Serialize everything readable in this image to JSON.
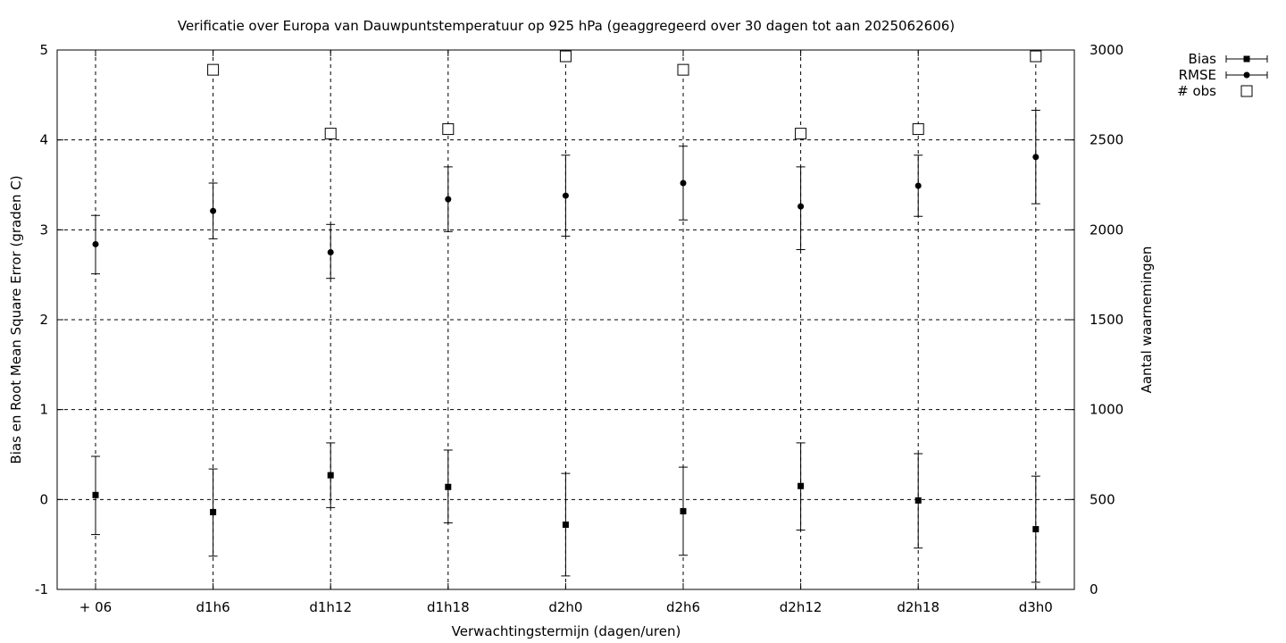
{
  "chart_data": {
    "type": "scatter",
    "title": "Verificatie over Europa van Dauwpuntstemperatuur op 925 hPa (geaggregeerd over 30 dagen tot aan 2025062606)",
    "xlabel": "Verwachtingstermijn (dagen/uren)",
    "ylabel": "Bias en Root Mean Square Error (graden C)",
    "y2label": "Aantal waarnemingen",
    "categories": [
      "+ 06",
      "d1h6",
      "d1h12",
      "d1h18",
      "d2h0",
      "d2h6",
      "d2h12",
      "d2h18",
      "d3h0"
    ],
    "ylim": [
      -1,
      5
    ],
    "y2lim": [
      0,
      3000
    ],
    "yticks": [
      "-1",
      "0",
      "1",
      "2",
      "3",
      "4",
      "5"
    ],
    "y2ticks": [
      "0",
      "500",
      "1000",
      "1500",
      "2000",
      "2500",
      "3000"
    ],
    "grid": true,
    "legend_position": "outside-top-right",
    "series": [
      {
        "name": "Bias",
        "axis": "y",
        "marker": "filled-square",
        "values": [
          0.05,
          -0.14,
          0.27,
          0.14,
          -0.28,
          -0.13,
          0.15,
          -0.01,
          -0.33
        ],
        "err_low": [
          -0.39,
          -0.63,
          -0.09,
          -0.26,
          -0.85,
          -0.62,
          -0.34,
          -0.54,
          -0.92
        ],
        "err_high": [
          0.48,
          0.34,
          0.63,
          0.55,
          0.29,
          0.36,
          0.63,
          0.51,
          0.26
        ]
      },
      {
        "name": "RMSE",
        "axis": "y",
        "marker": "filled-circle",
        "values": [
          2.84,
          3.21,
          2.75,
          3.34,
          3.38,
          3.52,
          3.26,
          3.49,
          3.81
        ],
        "err_low": [
          2.51,
          2.9,
          2.46,
          2.98,
          2.93,
          3.11,
          2.78,
          3.15,
          3.29
        ],
        "err_high": [
          3.16,
          3.52,
          3.06,
          3.7,
          3.83,
          3.93,
          3.7,
          3.83,
          4.33
        ]
      },
      {
        "name": "# obs",
        "axis": "y2",
        "marker": "open-square",
        "values": [
          null,
          2890,
          2535,
          2560,
          2965,
          2890,
          2535,
          2560,
          2965
        ]
      }
    ]
  }
}
